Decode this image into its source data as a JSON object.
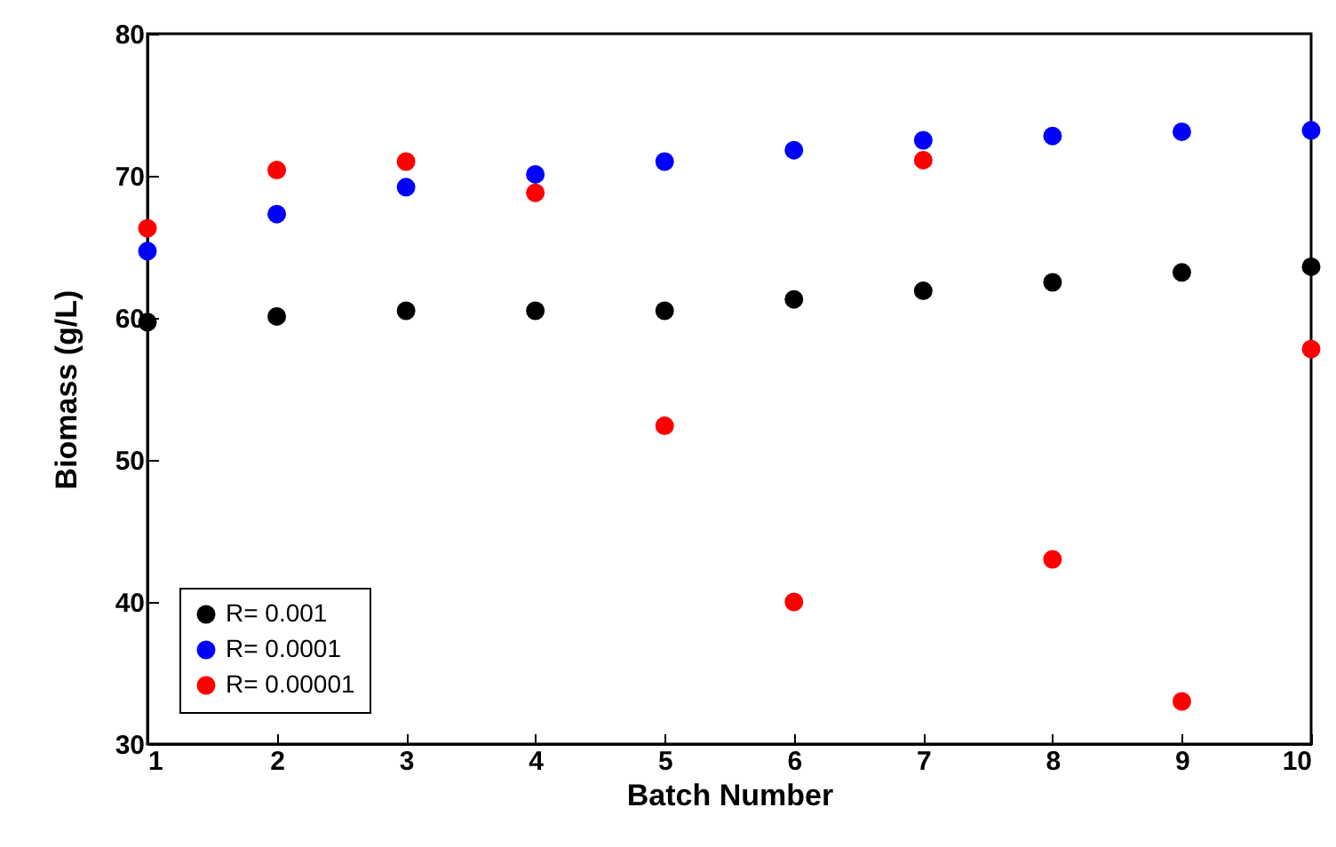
{
  "chart_data": {
    "type": "scatter",
    "xlabel": "Batch Number",
    "ylabel": "Biomass (g/L)",
    "x": [
      1,
      2,
      3,
      4,
      5,
      6,
      7,
      8,
      9,
      10
    ],
    "series": [
      {
        "name": "R= 0.001",
        "color": "#000000",
        "values": [
          59.7,
          60.1,
          60.5,
          60.5,
          60.5,
          61.3,
          61.9,
          62.5,
          63.2,
          63.6
        ]
      },
      {
        "name": "R= 0.0001",
        "color": "#0000ff",
        "values": [
          64.7,
          67.3,
          69.2,
          70.1,
          71.0,
          71.8,
          72.5,
          72.8,
          73.1,
          73.2
        ]
      },
      {
        "name": "R= 0.00001",
        "color": "#ff0000",
        "values": [
          66.3,
          70.4,
          71.0,
          68.8,
          52.4,
          40.0,
          71.1,
          43.0,
          33.0,
          57.8
        ]
      }
    ],
    "xlim": [
      1,
      10
    ],
    "xticks": [
      1,
      2,
      3,
      4,
      5,
      6,
      7,
      8,
      9,
      10
    ],
    "ylim": [
      30,
      80
    ],
    "yticks": [
      30,
      40,
      50,
      60,
      70,
      80
    ],
    "marker": "circle",
    "legend": "bottom left",
    "grid": false
  }
}
